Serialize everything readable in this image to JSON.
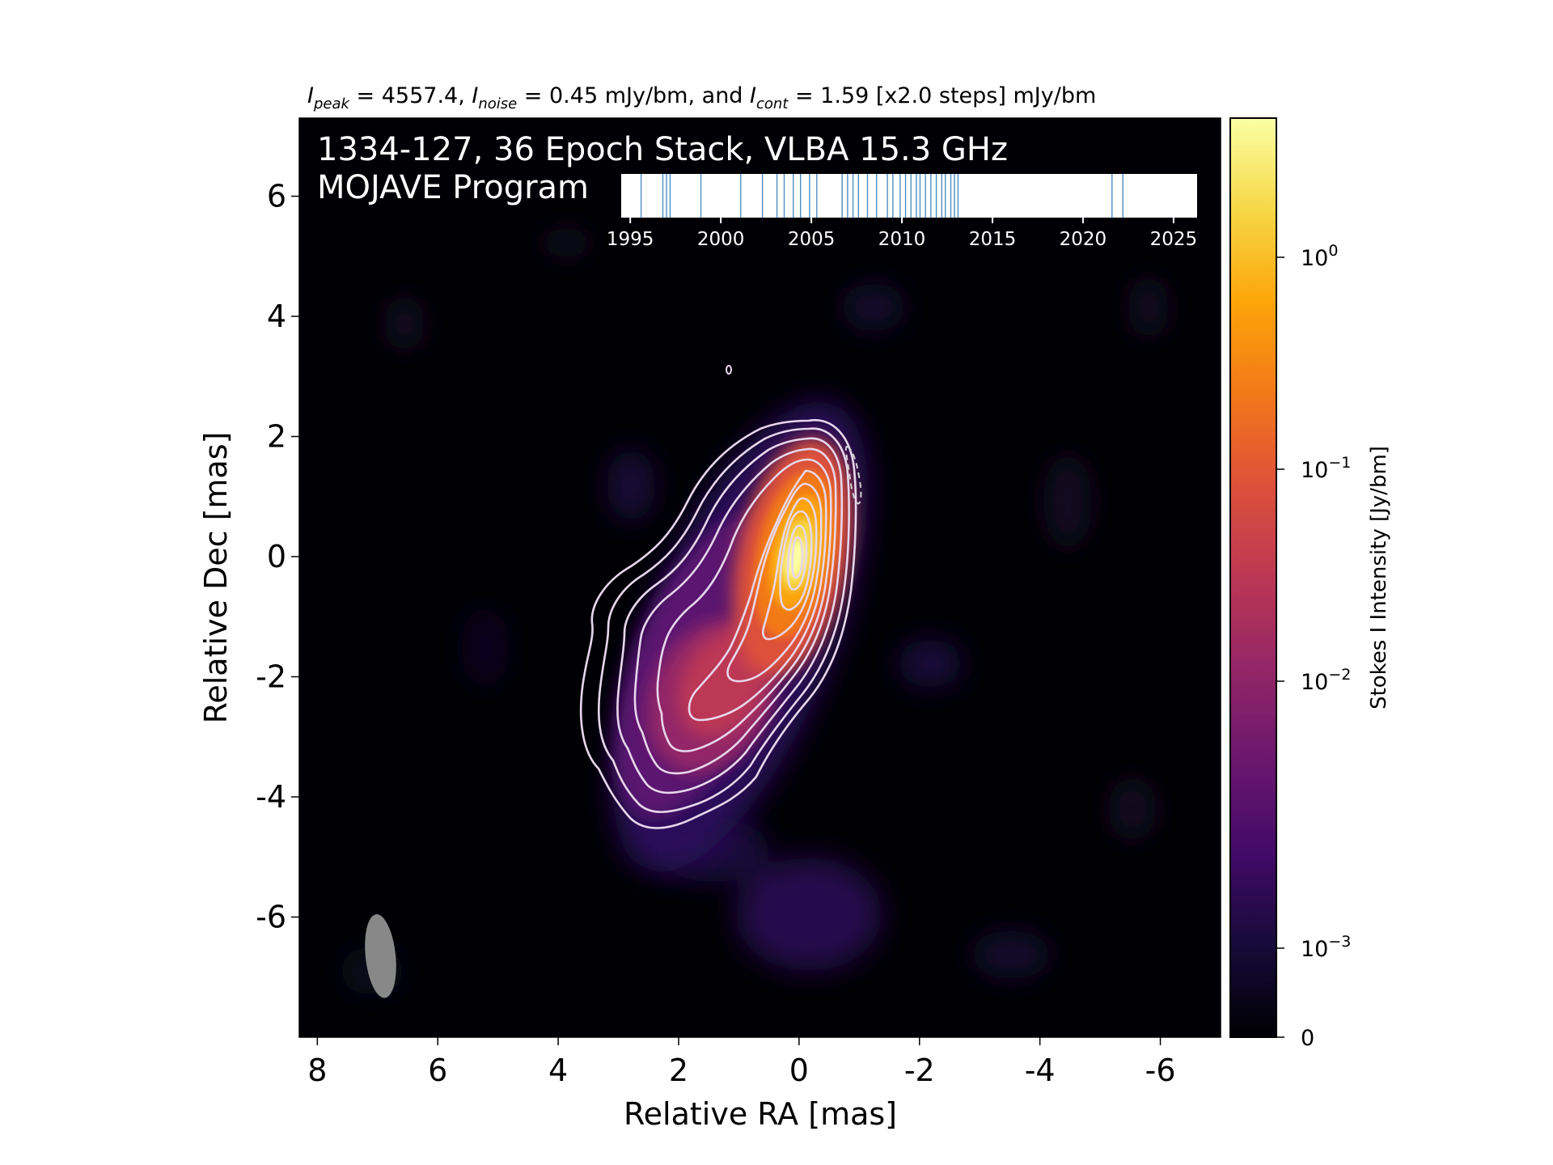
{
  "chart_data": {
    "type": "heatmap",
    "header": {
      "peak_symbol": "I",
      "peak_sub": "peak",
      "peak_text": " = 4557.4, ",
      "noise_symbol": "I",
      "noise_sub": "noise",
      "noise_text": " = 0.45 mJy/bm, and ",
      "cont_symbol": "I",
      "cont_sub": "cont",
      "cont_text": " = 1.59 [x2.0 steps] mJy/bm"
    },
    "overlay_title_line1": "1334-127, 36 Epoch Stack, VLBA 15.3 GHz",
    "overlay_title_line2": "MOJAVE Program",
    "xlabel": "Relative RA [mas]",
    "ylabel": "Relative Dec [mas]",
    "xlim": [
      8.3,
      -7.0
    ],
    "ylim": [
      -8.0,
      7.3
    ],
    "x_ticks": [
      "8",
      "6",
      "4",
      "2",
      "0",
      "-2",
      "-4",
      "-6"
    ],
    "x_tick_values": [
      8,
      6,
      4,
      2,
      0,
      -2,
      -4,
      -6
    ],
    "y_ticks": [
      "6",
      "4",
      "2",
      "0",
      "-2",
      "-4",
      "-6"
    ],
    "y_tick_values": [
      6,
      4,
      2,
      0,
      -2,
      -4,
      -6
    ],
    "colorbar": {
      "label": "Stokes I Intensity [Jy/bm]",
      "scale": "log",
      "ticks": [
        {
          "base": "10",
          "exp": "0",
          "value": 1.0
        },
        {
          "base": "10",
          "exp": "−1",
          "value": 0.1
        },
        {
          "base": "10",
          "exp": "−2",
          "value": 0.01
        },
        {
          "base": "10",
          "exp": "−3",
          "value": 0.001
        },
        {
          "base": "0",
          "exp": "",
          "value": 0
        }
      ],
      "colormap": "inferno"
    },
    "timeline": {
      "ticks": [
        "1995",
        "2000",
        "2005",
        "2010",
        "2015",
        "2020",
        "2025"
      ],
      "tick_values": [
        1995,
        2000,
        2005,
        2010,
        2015,
        2020,
        2025
      ],
      "range": [
        1994.5,
        2026.3
      ],
      "epochs": [
        1995.6,
        1996.8,
        1997.0,
        1997.2,
        1998.9,
        2001.1,
        2002.3,
        2003.1,
        2003.5,
        2004.0,
        2004.4,
        2004.9,
        2005.3,
        2006.7,
        2007.0,
        2007.3,
        2007.6,
        2008.1,
        2008.6,
        2009.2,
        2009.5,
        2009.9,
        2010.2,
        2010.5,
        2010.8,
        2011.0,
        2011.3,
        2011.6,
        2011.9,
        2012.2,
        2012.4,
        2012.7,
        2012.9,
        2013.1,
        2021.6,
        2022.2
      ]
    },
    "beam": {
      "x": 6.95,
      "y": -6.65,
      "major_mas": 1.4,
      "minor_mas": 0.5,
      "pa_deg": -6
    },
    "contour_color": "#e8d7ec",
    "negative_contour_style": "dashed",
    "accent_colors": {
      "bright": "#fcffa4",
      "mid": "#e55c30",
      "low": "#420a68",
      "background": "#000004"
    }
  }
}
